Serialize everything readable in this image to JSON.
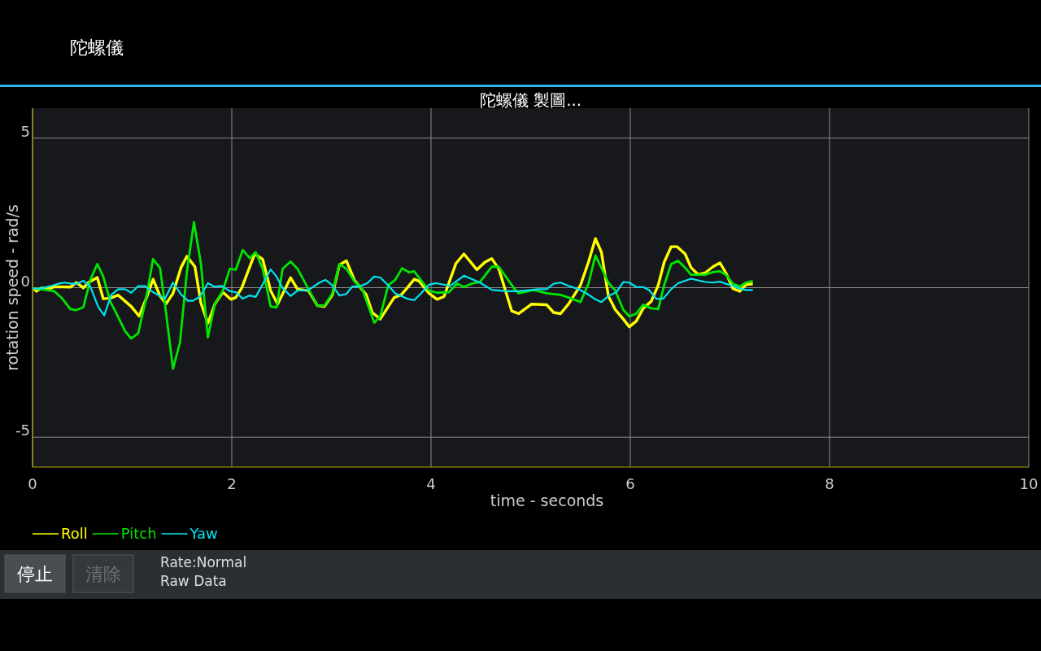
{
  "chart_data": {
    "type": "line",
    "title": "陀螺儀 製圖...",
    "subtitle": "陀螺儀",
    "xlabel": "time - seconds",
    "ylabel": "rotation speed - rad/s",
    "xlim": [
      0,
      10
    ],
    "ylim": [
      -6,
      6
    ],
    "xticks": [
      0,
      2,
      4,
      6,
      8,
      10
    ],
    "yticks": [
      5,
      0,
      -5
    ],
    "grid": true,
    "legend": "bottom left",
    "annotations": [
      "停止",
      "清除",
      "Rate:Normal",
      "Raw Data"
    ],
    "series": [
      {
        "name": "Roll",
        "color": "#ffff00",
        "x": [
          0.01,
          0.04,
          0.09,
          0.17,
          0.22,
          0.38,
          0.44,
          0.47,
          0.51,
          0.56,
          0.65,
          0.71,
          0.78,
          0.86,
          0.99,
          1.07,
          1.14,
          1.21,
          1.28,
          1.34,
          1.41,
          1.49,
          1.55,
          1.63,
          1.69,
          1.76,
          1.83,
          1.91,
          1.99,
          2.04,
          2.1,
          2.23,
          2.31,
          2.39,
          2.46,
          2.59,
          2.66,
          2.77,
          2.86,
          2.93,
          3.01,
          3.08,
          3.15,
          3.23,
          3.35,
          3.41,
          3.49,
          3.63,
          3.7,
          3.76,
          3.83,
          3.88,
          3.98,
          4.06,
          4.13,
          4.25,
          4.33,
          4.46,
          4.54,
          4.61,
          4.68,
          4.81,
          4.88,
          5.01,
          5.16,
          5.23,
          5.3,
          5.38,
          5.5,
          5.58,
          5.65,
          5.71,
          5.78,
          5.85,
          5.93,
          5.99,
          6.06,
          6.13,
          6.21,
          6.28,
          6.34,
          6.41,
          6.47,
          6.55,
          6.61,
          6.68,
          6.75,
          6.83,
          6.9,
          6.96,
          7.03,
          7.1,
          7.16,
          7.23
        ],
        "values": [
          -0.03,
          -0.12,
          -0.01,
          -0.03,
          0.03,
          0.02,
          0.17,
          0.1,
          -0.01,
          0.17,
          0.34,
          -0.37,
          -0.35,
          -0.25,
          -0.63,
          -0.95,
          -0.37,
          0.28,
          -0.28,
          -0.54,
          -0.19,
          0.67,
          1.05,
          0.7,
          -0.51,
          -1.19,
          -0.55,
          -0.15,
          -0.39,
          -0.33,
          -0.01,
          1.13,
          0.95,
          -0.1,
          -0.55,
          0.33,
          -0.05,
          -0.1,
          -0.6,
          -0.63,
          -0.24,
          0.76,
          0.9,
          0.26,
          -0.24,
          -0.83,
          -1.05,
          -0.33,
          -0.24,
          -0.01,
          0.28,
          0.22,
          -0.19,
          -0.39,
          -0.3,
          0.81,
          1.13,
          0.6,
          0.85,
          0.97,
          0.63,
          -0.78,
          -0.87,
          -0.55,
          -0.57,
          -0.83,
          -0.87,
          -0.55,
          0.08,
          0.85,
          1.64,
          1.19,
          -0.28,
          -0.74,
          -1.05,
          -1.31,
          -1.12,
          -0.69,
          -0.46,
          0.08,
          0.85,
          1.37,
          1.37,
          1.13,
          0.67,
          0.44,
          0.49,
          0.7,
          0.83,
          0.49,
          -0.03,
          -0.12,
          0.1,
          0.13
        ]
      },
      {
        "name": "Pitch",
        "color": "#00e600",
        "x": [
          0.01,
          0.08,
          0.22,
          0.3,
          0.38,
          0.44,
          0.51,
          0.58,
          0.65,
          0.71,
          0.78,
          0.85,
          0.93,
          0.99,
          1.06,
          1.14,
          1.21,
          1.28,
          1.34,
          1.41,
          1.48,
          1.55,
          1.62,
          1.69,
          1.76,
          1.83,
          1.91,
          1.98,
          2.04,
          2.11,
          2.18,
          2.24,
          2.31,
          2.39,
          2.45,
          2.51,
          2.59,
          2.66,
          2.86,
          2.93,
          3.01,
          3.08,
          3.15,
          3.23,
          3.31,
          3.43,
          3.49,
          3.57,
          3.64,
          3.71,
          3.78,
          3.83,
          3.98,
          4.06,
          4.18,
          4.26,
          4.33,
          4.41,
          4.49,
          4.61,
          4.68,
          4.84,
          4.88,
          5.03,
          5.16,
          5.3,
          5.38,
          5.5,
          5.58,
          5.65,
          5.78,
          5.85,
          5.93,
          5.99,
          6.06,
          6.13,
          6.21,
          6.28,
          6.34,
          6.41,
          6.48,
          6.55,
          6.61,
          6.75,
          6.83,
          6.9,
          6.96,
          7.03,
          7.1,
          7.16,
          7.23
        ],
        "values": [
          -0.03,
          -0.05,
          -0.12,
          -0.37,
          -0.72,
          -0.75,
          -0.66,
          0.26,
          0.79,
          0.37,
          -0.46,
          -0.92,
          -1.46,
          -1.7,
          -1.53,
          -0.37,
          0.96,
          0.65,
          -0.83,
          -2.71,
          -1.83,
          0.54,
          2.19,
          0.81,
          -1.66,
          -0.55,
          -0.1,
          0.63,
          0.6,
          1.26,
          0.99,
          1.19,
          0.63,
          -0.63,
          -0.66,
          0.63,
          0.87,
          0.63,
          -0.6,
          -0.6,
          -0.19,
          0.79,
          0.63,
          0.22,
          -0.05,
          -1.17,
          -0.96,
          0.08,
          0.26,
          0.65,
          0.51,
          0.55,
          -0.1,
          -0.17,
          -0.15,
          0.14,
          0.02,
          0.14,
          0.19,
          0.7,
          0.7,
          -0.05,
          -0.19,
          -0.08,
          -0.19,
          -0.24,
          -0.33,
          -0.48,
          0.13,
          1.08,
          0.17,
          -0.1,
          -0.74,
          -0.96,
          -0.87,
          -0.57,
          -0.69,
          -0.72,
          0.08,
          0.79,
          0.9,
          0.67,
          0.43,
          0.43,
          0.52,
          0.55,
          0.43,
          0.13,
          0.04,
          0.17,
          0.22
        ]
      },
      {
        "name": "Yaw",
        "color": "#00e5ee",
        "x": [
          0.01,
          0.08,
          0.19,
          0.27,
          0.32,
          0.38,
          0.44,
          0.51,
          0.58,
          0.66,
          0.72,
          0.79,
          0.86,
          0.93,
          0.99,
          1.06,
          1.13,
          1.21,
          1.33,
          1.41,
          1.49,
          1.56,
          1.61,
          1.68,
          1.76,
          1.83,
          1.9,
          1.98,
          2.04,
          2.11,
          2.18,
          2.24,
          2.32,
          2.39,
          2.45,
          2.51,
          2.59,
          2.66,
          2.77,
          2.88,
          2.94,
          3.01,
          3.08,
          3.15,
          3.21,
          3.28,
          3.36,
          3.43,
          3.49,
          3.57,
          3.64,
          3.76,
          3.83,
          3.9,
          3.98,
          4.05,
          4.19,
          4.33,
          4.49,
          4.61,
          4.76,
          4.87,
          5.08,
          5.16,
          5.23,
          5.3,
          5.38,
          5.48,
          5.56,
          5.65,
          5.71,
          5.78,
          5.86,
          5.93,
          5.99,
          6.06,
          6.13,
          6.19,
          6.26,
          6.33,
          6.41,
          6.48,
          6.61,
          6.75,
          6.83,
          6.9,
          6.96,
          7.03,
          7.1,
          7.16,
          7.23
        ],
        "values": [
          -0.03,
          -0.03,
          0.06,
          0.14,
          0.17,
          0.14,
          0.12,
          0.23,
          0.04,
          -0.65,
          -0.93,
          -0.24,
          -0.05,
          -0.05,
          -0.17,
          0.05,
          0.05,
          -0.15,
          -0.37,
          0.17,
          -0.22,
          -0.44,
          -0.44,
          -0.3,
          0.15,
          0.03,
          0.06,
          -0.12,
          -0.15,
          -0.37,
          -0.26,
          -0.31,
          0.17,
          0.61,
          0.37,
          -0.01,
          -0.28,
          -0.1,
          -0.08,
          0.17,
          0.26,
          0.08,
          -0.26,
          -0.21,
          0.04,
          0.04,
          0.15,
          0.37,
          0.34,
          0.08,
          -0.19,
          -0.37,
          -0.42,
          -0.19,
          0.1,
          0.15,
          0.06,
          0.4,
          0.17,
          -0.07,
          -0.12,
          -0.12,
          -0.05,
          -0.05,
          0.13,
          0.17,
          0.06,
          -0.05,
          -0.19,
          -0.39,
          -0.48,
          -0.28,
          -0.15,
          0.19,
          0.17,
          0.02,
          0.02,
          -0.08,
          -0.37,
          -0.37,
          -0.05,
          0.15,
          0.3,
          0.19,
          0.17,
          0.2,
          0.13,
          0.06,
          -0.03,
          -0.08,
          -0.08
        ]
      }
    ]
  }
}
